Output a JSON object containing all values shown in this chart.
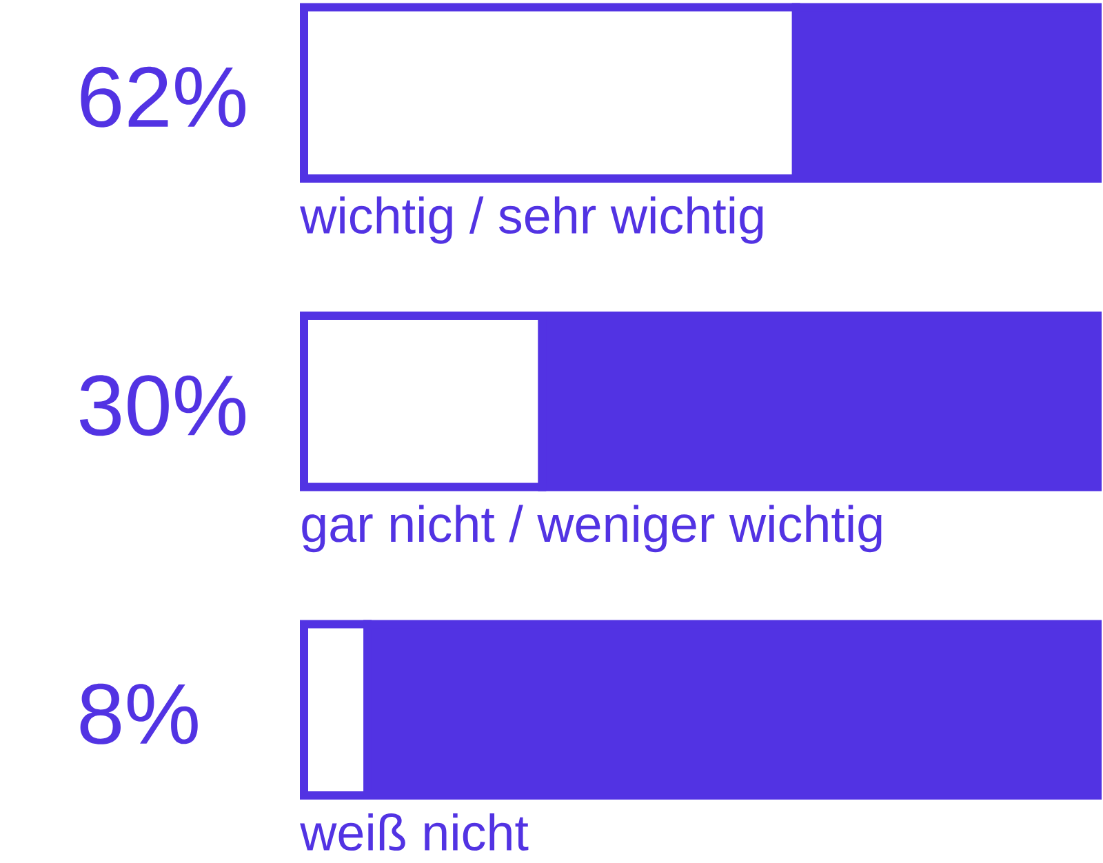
{
  "chart_data": {
    "type": "bar",
    "orientation": "horizontal",
    "stacked": true,
    "categories": [
      "wichtig / sehr wichtig",
      "gar nicht / weniger wichtig",
      "weiß nicht"
    ],
    "series": [
      {
        "color": "#ffffff",
        "values": [
          62,
          30,
          8
        ],
        "value_labels": [
          "62%",
          "30%",
          "8%"
        ]
      },
      {
        "color": "#5233e3",
        "values": [
          38,
          70,
          92
        ]
      }
    ],
    "xlim": [
      0,
      100
    ],
    "tick_labels": false
  }
}
